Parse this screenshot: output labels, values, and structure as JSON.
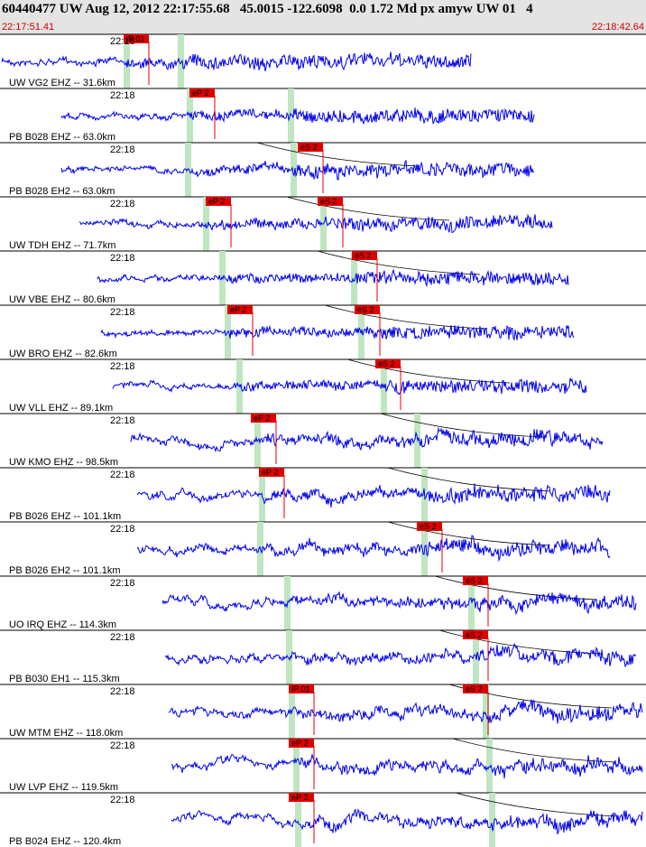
{
  "header": {
    "title": "60440477 UW Aug 12, 2012 22:17:55.68   45.0015 -122.6098  0.0 1.72 Md px amyw UW 01   4",
    "start_time": "22:17:51.41",
    "end_time": "22:18:42.64"
  },
  "traces": [
    {
      "time_label": "22:18",
      "station": "UW VG2 EHZ -- 31.6km",
      "picks": [
        "iP 01"
      ]
    },
    {
      "time_label": "22:18",
      "station": "PB B028 EHZ -- 63.0km",
      "picks": [
        "eP 2"
      ]
    },
    {
      "time_label": "22:18",
      "station": "PB B028 EH2 -- 63.0km",
      "picks": [
        "eS 2"
      ]
    },
    {
      "time_label": "22:18",
      "station": "UW TDH EHZ -- 71.7km",
      "picks": [
        "eP 2",
        "eS 2"
      ]
    },
    {
      "time_label": "22:18",
      "station": "UW VBE EHZ -- 80.6km",
      "picks": [
        "eS 2"
      ]
    },
    {
      "time_label": "22:18",
      "station": "UW BRO EHZ -- 82.6km",
      "picks": [
        "eP 2",
        "eS 2"
      ]
    },
    {
      "time_label": "22:18",
      "station": "UW VLL EHZ -- 89.1km",
      "picks": [
        "eS 2"
      ]
    },
    {
      "time_label": "22:18",
      "station": "UW KMO EHZ -- 98.5km",
      "picks": [
        "eP 2"
      ]
    },
    {
      "time_label": "22:18",
      "station": "PB B026 EHZ -- 101.1km",
      "picks": [
        "eP 2"
      ]
    },
    {
      "time_label": "22:18",
      "station": "PB B026 EH2 -- 101.1km",
      "picks": [
        "eS 2"
      ]
    },
    {
      "time_label": "22:18",
      "station": "UO IRQ EHZ -- 114.3km",
      "picks": [
        "eS 2"
      ]
    },
    {
      "time_label": "22:18",
      "station": "PB B030 EH1 -- 115.3km",
      "picks": [
        "eS 2"
      ]
    },
    {
      "time_label": "22:18",
      "station": "UW MTM EHZ -- 118.0km",
      "picks": [
        "iP 01",
        "eS 2"
      ]
    },
    {
      "time_label": "22:18",
      "station": "UW LVP EHZ -- 119.5km",
      "picks": [
        "eP 2"
      ]
    },
    {
      "time_label": "22:18",
      "station": "PB B024 EHZ -- 120.4km",
      "picks": [
        "eP 2"
      ]
    }
  ]
}
